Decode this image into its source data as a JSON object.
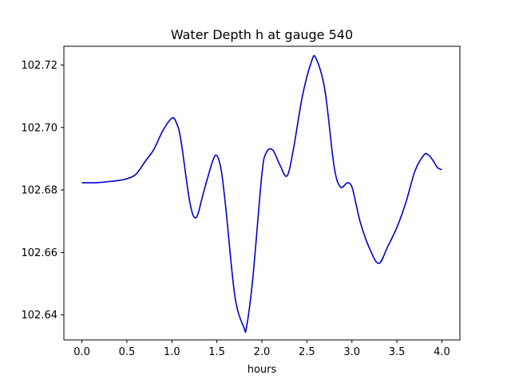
{
  "chart_data": {
    "type": "line",
    "title": "Water Depth h at gauge 540",
    "xlabel": "hours",
    "ylabel": "",
    "xlim": [
      -0.2,
      4.2
    ],
    "ylim": [
      102.632,
      102.726
    ],
    "xticks": [
      0.0,
      0.5,
      1.0,
      1.5,
      2.0,
      2.5,
      3.0,
      3.5,
      4.0
    ],
    "xtick_labels": [
      "0.0",
      "0.5",
      "1.0",
      "1.5",
      "2.0",
      "2.5",
      "3.0",
      "3.5",
      "4.0"
    ],
    "yticks": [
      102.64,
      102.66,
      102.68,
      102.7,
      102.72
    ],
    "ytick_labels": [
      "102.64",
      "102.66",
      "102.68",
      "102.70",
      "102.72"
    ],
    "grid": false,
    "line_color": "#0000cc",
    "series": [
      {
        "x": [
          0.0,
          0.1,
          0.2,
          0.3,
          0.4,
          0.5,
          0.6,
          0.7,
          0.8,
          0.9,
          1.0,
          1.05,
          1.1,
          1.2,
          1.27,
          1.35,
          1.45,
          1.5,
          1.55,
          1.6,
          1.7,
          1.8,
          1.83,
          1.9,
          2.0,
          2.05,
          2.12,
          2.2,
          2.28,
          2.35,
          2.45,
          2.55,
          2.6,
          2.7,
          2.8,
          2.87,
          2.95,
          3.0,
          3.05,
          3.1,
          3.2,
          3.3,
          3.4,
          3.5,
          3.6,
          3.7,
          3.8,
          3.85,
          3.9,
          3.95,
          4.0
        ],
        "y": [
          102.6823,
          102.6823,
          102.6824,
          102.6827,
          102.683,
          102.6836,
          102.685,
          102.689,
          102.693,
          102.699,
          102.703,
          102.7015,
          102.696,
          102.676,
          102.6712,
          102.679,
          102.689,
          102.691,
          102.686,
          102.674,
          102.646,
          102.636,
          102.6362,
          102.652,
          102.685,
          102.692,
          102.6928,
          102.688,
          102.6845,
          102.693,
          102.71,
          102.721,
          102.7222,
          102.712,
          102.688,
          102.681,
          102.6823,
          102.681,
          102.675,
          102.669,
          102.661,
          102.6565,
          102.662,
          102.668,
          102.676,
          102.686,
          102.6912,
          102.6912,
          102.6895,
          102.6872,
          102.6865
        ]
      }
    ]
  }
}
